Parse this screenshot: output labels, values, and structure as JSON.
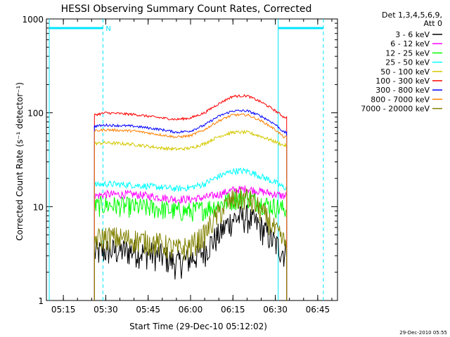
{
  "chart_data": {
    "type": "line",
    "title": "HESSI Observing Summary Count Rates, Corrected",
    "xlabel": "Start Time (29-Dec-10 05:12:02)",
    "ylabel": "Corrected Count Rate (s⁻¹ detector⁻¹)",
    "yscale": "log",
    "ylim": [
      1,
      1000
    ],
    "xlim": [
      "05:09",
      "06:52"
    ],
    "x_ticks": [
      "05:15",
      "05:30",
      "05:45",
      "06:00",
      "06:15",
      "06:30",
      "06:45"
    ],
    "y_ticks": [
      "1",
      "10",
      "100",
      "1000"
    ],
    "footer": "29-Dec-2010 05:55",
    "legend": {
      "header": [
        "Det 1,3,4,5,6,9,",
        "Att 0"
      ],
      "placement": "top-right outside plot"
    },
    "data_start": "05:26",
    "data_end": "06:34",
    "night_flags": [
      {
        "label": "N",
        "start": "05:10",
        "end": "05:29"
      },
      {
        "label": "",
        "start": "06:31",
        "end": "06:47"
      }
    ],
    "series": [
      {
        "name": "3 - 6 keV",
        "color": "#000000",
        "noise": 0.35,
        "x": [
          "05:26",
          "05:30",
          "05:40",
          "05:50",
          "05:55",
          "06:00",
          "06:05",
          "06:10",
          "06:15",
          "06:20",
          "06:25",
          "06:30",
          "06:33"
        ],
        "y": [
          3.2,
          3.4,
          3.4,
          3.0,
          2.5,
          2.8,
          3.4,
          5.0,
          7.5,
          7.8,
          6.0,
          4.0,
          3.3
        ]
      },
      {
        "name": "6 - 12 keV",
        "color": "#ff00ff",
        "noise": 0.1,
        "x": [
          "05:26",
          "05:30",
          "05:40",
          "05:50",
          "05:55",
          "06:00",
          "06:05",
          "06:10",
          "06:15",
          "06:20",
          "06:25",
          "06:30",
          "06:33"
        ],
        "y": [
          13,
          13.5,
          13.5,
          12.5,
          12,
          12,
          12.5,
          13.5,
          15,
          15.5,
          14.5,
          13.5,
          13
        ]
      },
      {
        "name": "12 - 25 keV",
        "color": "#00ff00",
        "noise": 0.25,
        "x": [
          "05:26",
          "05:30",
          "05:40",
          "05:50",
          "05:55",
          "06:00",
          "06:05",
          "06:10",
          "06:15",
          "06:20",
          "06:25",
          "06:30",
          "06:33"
        ],
        "y": [
          10,
          10.5,
          10,
          9.5,
          9,
          9,
          9.5,
          10.5,
          12,
          12.5,
          11,
          10,
          9.5
        ]
      },
      {
        "name": "25 - 50 keV",
        "color": "#00ffff",
        "noise": 0.08,
        "x": [
          "05:26",
          "05:30",
          "05:40",
          "05:50",
          "05:55",
          "06:00",
          "06:05",
          "06:10",
          "06:15",
          "06:20",
          "06:25",
          "06:30",
          "06:33"
        ],
        "y": [
          17,
          17.5,
          17,
          16,
          15.5,
          16,
          17.5,
          21,
          24,
          24,
          21,
          18,
          16
        ]
      },
      {
        "name": "50 - 100 keV",
        "color": "#d4c800",
        "noise": 0.04,
        "x": [
          "05:26",
          "05:30",
          "05:40",
          "05:50",
          "05:55",
          "06:00",
          "06:05",
          "06:10",
          "06:15",
          "06:20",
          "06:25",
          "06:30",
          "06:33"
        ],
        "y": [
          47,
          48,
          46,
          42,
          41,
          42,
          47,
          56,
          62,
          62,
          56,
          49,
          45
        ]
      },
      {
        "name": "100 - 300 keV",
        "color": "#ff0000",
        "noise": 0.03,
        "x": [
          "05:26",
          "05:30",
          "05:40",
          "05:50",
          "05:55",
          "06:00",
          "06:05",
          "06:10",
          "06:15",
          "06:20",
          "06:25",
          "06:30",
          "06:33"
        ],
        "y": [
          95,
          100,
          96,
          88,
          85,
          88,
          100,
          125,
          150,
          152,
          130,
          105,
          90
        ]
      },
      {
        "name": "300 - 800 keV",
        "color": "#0000ff",
        "noise": 0.03,
        "x": [
          "05:26",
          "05:30",
          "05:40",
          "05:50",
          "05:55",
          "06:00",
          "06:05",
          "06:10",
          "06:15",
          "06:20",
          "06:25",
          "06:30",
          "06:33"
        ],
        "y": [
          72,
          74,
          72,
          66,
          62,
          64,
          74,
          92,
          105,
          105,
          92,
          75,
          62
        ]
      },
      {
        "name": "800 - 7000 keV",
        "color": "#ff8000",
        "noise": 0.03,
        "x": [
          "05:26",
          "05:30",
          "05:40",
          "05:50",
          "05:55",
          "06:00",
          "06:05",
          "06:10",
          "06:15",
          "06:20",
          "06:25",
          "06:30",
          "06:33"
        ],
        "y": [
          64,
          66,
          64,
          58,
          55,
          57,
          66,
          82,
          95,
          95,
          82,
          66,
          55
        ]
      },
      {
        "name": "7000 - 20000 keV",
        "color": "#808000",
        "noise": 0.3,
        "x": [
          "05:26",
          "05:30",
          "05:40",
          "05:50",
          "05:55",
          "06:00",
          "06:05",
          "06:10",
          "06:15",
          "06:20",
          "06:25",
          "06:30",
          "06:33"
        ],
        "y": [
          4.5,
          4.8,
          4.5,
          4.0,
          3.5,
          3.8,
          5.0,
          8.5,
          12,
          12.5,
          9.0,
          5.5,
          4.2
        ]
      }
    ]
  }
}
